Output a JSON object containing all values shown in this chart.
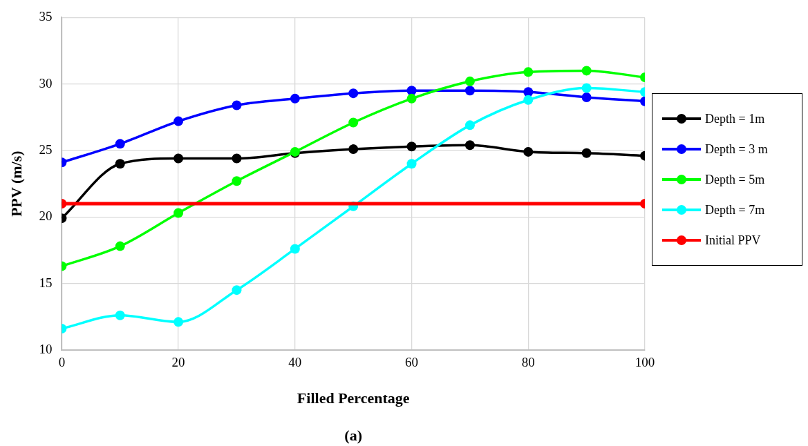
{
  "chart_data": {
    "type": "line",
    "xlabel": "Filled Percentage",
    "ylabel": "PPV (m/s)",
    "annotations": [
      "(a)"
    ],
    "x": [
      0,
      10,
      20,
      30,
      40,
      50,
      60,
      70,
      80,
      90,
      100
    ],
    "xlim": [
      0,
      100
    ],
    "xticks": [
      0,
      20,
      40,
      60,
      80,
      100
    ],
    "ylim": [
      10,
      35
    ],
    "yticks": [
      10,
      15,
      20,
      25,
      30,
      35
    ],
    "grid": true,
    "legend": "right",
    "marker": "circle",
    "line_style": "solid",
    "series": [
      {
        "name": "Depth = 1m",
        "color": "#000000",
        "values": [
          19.9,
          24.0,
          24.4,
          24.4,
          24.8,
          25.1,
          25.3,
          25.4,
          24.9,
          24.8,
          24.6
        ]
      },
      {
        "name": "Depth = 3 m",
        "color": "#0000ff",
        "values": [
          24.1,
          25.5,
          27.2,
          28.4,
          28.9,
          29.3,
          29.5,
          29.5,
          29.4,
          29.0,
          28.7
        ]
      },
      {
        "name": "Depth = 5m",
        "color": "#00ff00",
        "values": [
          16.3,
          17.8,
          20.3,
          22.7,
          24.9,
          27.1,
          28.9,
          30.2,
          30.9,
          31.0,
          30.5
        ]
      },
      {
        "name": "Depth = 7m",
        "color": "#00ffff",
        "values": [
          11.6,
          12.6,
          12.1,
          14.5,
          17.6,
          20.8,
          24.0,
          26.9,
          28.8,
          29.7,
          29.4
        ]
      },
      {
        "name": "Initial PPV",
        "color": "#ff0000",
        "x": [
          0,
          100
        ],
        "values": [
          21.0,
          21.0
        ]
      }
    ]
  }
}
